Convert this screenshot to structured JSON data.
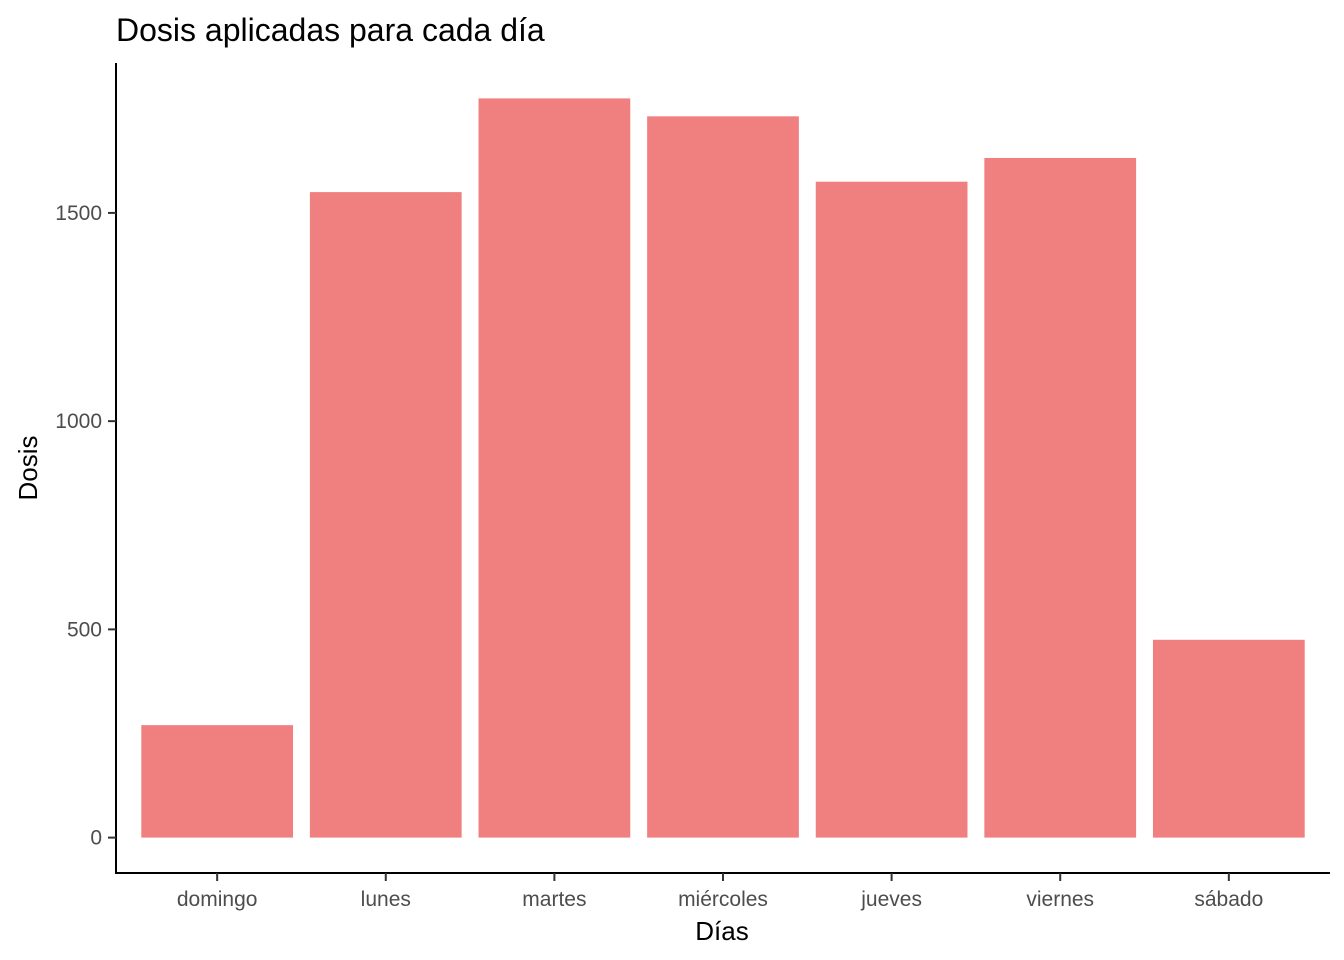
{
  "chart_data": {
    "type": "bar",
    "title": "Dosis aplicadas para cada día",
    "xlabel": "Días",
    "ylabel": "Dosis",
    "categories": [
      "domingo",
      "lunes",
      "martes",
      "miércoles",
      "jueves",
      "viernes",
      "sábado"
    ],
    "values": [
      270,
      1550,
      1775,
      1732,
      1575,
      1632,
      475
    ],
    "ylim": [
      -85,
      1860
    ],
    "yticks": [
      0,
      500,
      1000,
      1500
    ],
    "bar_color": "#F08080",
    "grid": false,
    "legend": "none"
  }
}
